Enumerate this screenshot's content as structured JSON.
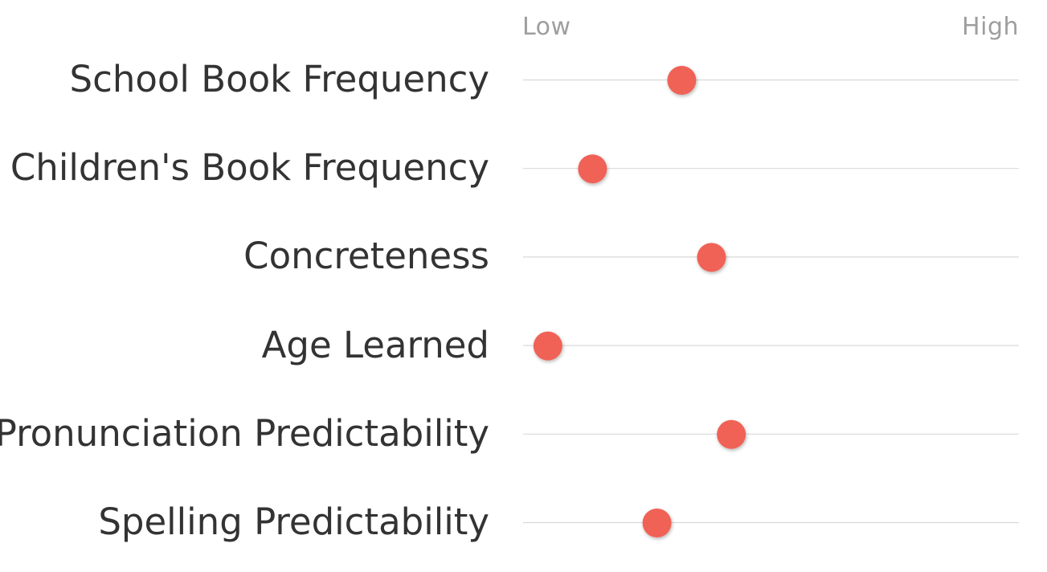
{
  "chart_data": {
    "type": "scatter",
    "title": "",
    "xlabel": "",
    "ylabel": "",
    "axis_labels": {
      "low": "Low",
      "high": "High"
    },
    "xlim": [
      0,
      1
    ],
    "grid": true,
    "marker_color": "#f06257",
    "gridline_color": "#d9d9d9",
    "categories": [
      "School Book Frequency",
      "Children's Book Frequency",
      "Concreteness",
      "Age Learned",
      "Pronunciation Predictability",
      "Spelling Predictability"
    ],
    "values": [
      0.32,
      0.14,
      0.38,
      0.05,
      0.42,
      0.27
    ]
  }
}
